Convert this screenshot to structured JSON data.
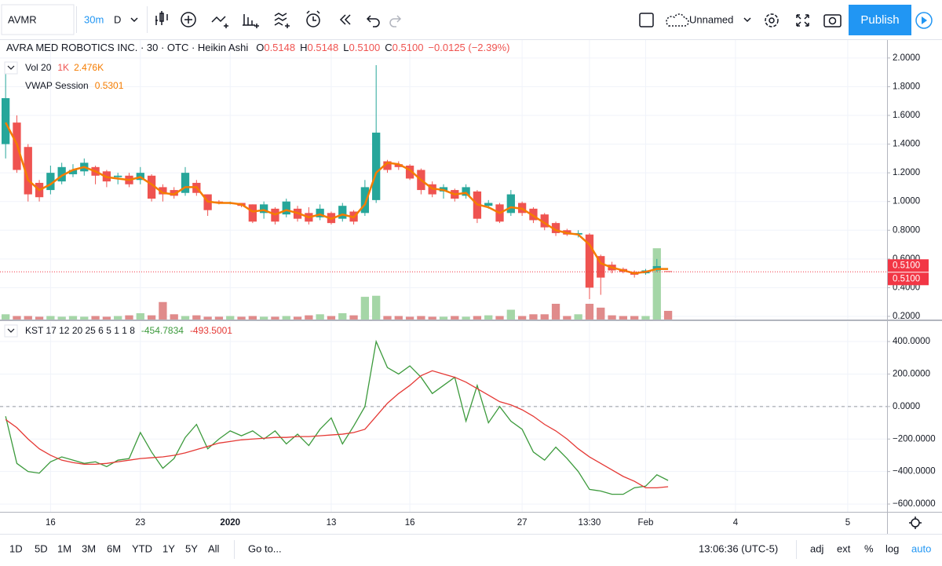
{
  "toolbar": {
    "symbol": "AVMR",
    "interval": "30m",
    "range": "D",
    "layout_name": "Unnamed",
    "publish": "Publish"
  },
  "bottom_bar": {
    "ranges": [
      "1D",
      "5D",
      "1M",
      "3M",
      "6M",
      "YTD",
      "1Y",
      "5Y",
      "All"
    ],
    "goto": "Go to...",
    "clock": "13:06:36 (UTC-5)",
    "options": [
      "adj",
      "ext",
      "%",
      "log",
      "auto"
    ]
  },
  "chart_data": [
    {
      "type": "candlestick",
      "title": "AVRA MED ROBOTICS INC. · 30 · OTC · Heikin Ashi",
      "ohlc_labels": [
        "O",
        "H",
        "L",
        "C"
      ],
      "ohlc_values": [
        "0.5148",
        "0.5148",
        "0.5100",
        "0.5100"
      ],
      "change": "−0.0125 (−2.39%)",
      "up_color": "#26a69a",
      "down_color": "#ef5350",
      "grid": true,
      "categories": [
        null,
        null,
        null,
        null,
        "16",
        null,
        null,
        null,
        null,
        null,
        null,
        null,
        "23",
        null,
        null,
        null,
        null,
        null,
        null,
        null,
        "2020",
        null,
        null,
        null,
        null,
        null,
        null,
        null,
        null,
        "13",
        null,
        null,
        null,
        null,
        null,
        null,
        "16",
        null,
        null,
        null,
        null,
        null,
        null,
        null,
        null,
        null,
        "27",
        null,
        null,
        null,
        null,
        null,
        "13:30",
        null,
        null,
        null,
        null,
        "Feb",
        null,
        null,
        null,
        null,
        null,
        null,
        null,
        "4",
        null,
        null,
        null,
        null,
        null,
        null,
        null,
        null,
        null,
        "5",
        null,
        null,
        null
      ],
      "ylim": [
        0.178,
        2.125
      ],
      "yticks": [
        {
          "value": 0.2,
          "label": "0.2000"
        },
        {
          "value": 0.4,
          "label": "0.4000"
        },
        {
          "value": 0.6,
          "label": "0.6000"
        },
        {
          "value": 0.8,
          "label": "0.8000"
        },
        {
          "value": 1.0,
          "label": "1.0000"
        },
        {
          "value": 1.2,
          "label": "1.2000"
        },
        {
          "value": 1.4,
          "label": "1.4000"
        },
        {
          "value": 1.6,
          "label": "1.6000"
        },
        {
          "value": 1.8,
          "label": "1.8000"
        },
        {
          "value": 2.0,
          "label": "2.0000"
        }
      ],
      "open": [
        1.4,
        1.55,
        1.38,
        1.13,
        1.08,
        1.14,
        1.19,
        1.21,
        1.24,
        1.21,
        1.17,
        1.18,
        1.15,
        1.18,
        1.1,
        1.08,
        1.06,
        1.13,
        1.05,
        1.0,
        0.99,
        0.99,
        0.98,
        0.92,
        0.95,
        0.91,
        0.95,
        0.92,
        0.89,
        0.92,
        0.88,
        0.93,
        0.92,
        1.01,
        1.28,
        1.26,
        1.25,
        1.22,
        1.12,
        1.07,
        1.08,
        1.04,
        1.07,
        0.97,
        0.98,
        0.92,
        0.99,
        0.95,
        0.91,
        0.85,
        0.8,
        0.77,
        0.77,
        0.62,
        0.56,
        0.53,
        0.51,
        0.5,
        0.52,
        0.5148,
        null,
        null,
        null,
        null,
        null,
        null,
        null,
        null,
        null,
        null,
        null,
        null,
        null,
        null,
        null,
        null,
        null,
        null,
        null
      ],
      "high": [
        1.95,
        1.6,
        1.4,
        1.15,
        1.25,
        1.27,
        1.26,
        1.3,
        1.25,
        1.22,
        1.2,
        1.2,
        1.24,
        1.19,
        1.12,
        1.1,
        1.24,
        1.15,
        1.05,
        1.01,
        1.0,
        0.99,
        0.98,
        1.0,
        0.96,
        1.02,
        0.97,
        0.96,
        0.98,
        0.93,
        0.99,
        0.94,
        1.15,
        1.95,
        1.29,
        1.28,
        1.26,
        1.23,
        1.14,
        1.12,
        1.09,
        1.12,
        1.08,
        1.01,
        0.99,
        1.08,
        1.0,
        0.96,
        0.92,
        0.86,
        0.81,
        0.8,
        0.78,
        0.63,
        0.58,
        0.54,
        0.52,
        0.53,
        0.6,
        0.5148,
        null,
        null,
        null,
        null,
        null,
        null,
        null,
        null,
        null,
        null,
        null,
        null,
        null,
        null,
        null,
        null,
        null,
        null,
        null
      ],
      "low": [
        1.3,
        1.2,
        1.0,
        1.0,
        1.05,
        1.12,
        1.17,
        1.18,
        1.12,
        1.1,
        1.12,
        1.1,
        1.12,
        1.0,
        1.0,
        1.02,
        1.04,
        1.04,
        0.9,
        0.98,
        0.98,
        0.96,
        0.85,
        0.88,
        0.84,
        0.89,
        0.86,
        0.84,
        0.87,
        0.84,
        0.86,
        0.84,
        0.9,
        0.99,
        1.2,
        1.22,
        1.15,
        1.05,
        1.03,
        1.02,
        1.0,
        1.02,
        0.85,
        0.95,
        0.85,
        0.9,
        0.9,
        0.85,
        0.8,
        0.76,
        0.76,
        0.75,
        0.32,
        0.35,
        0.5,
        0.5,
        0.47,
        0.49,
        0.51,
        0.51,
        null,
        null,
        null,
        null,
        null,
        null,
        null,
        null,
        null,
        null,
        null,
        null,
        null,
        null,
        null,
        null,
        null,
        null,
        null
      ],
      "close": [
        1.72,
        1.22,
        1.05,
        1.03,
        1.2,
        1.24,
        1.22,
        1.27,
        1.18,
        1.14,
        1.18,
        1.12,
        1.2,
        1.02,
        1.05,
        1.04,
        1.2,
        1.06,
        0.94,
        0.99,
        0.99,
        0.97,
        0.86,
        0.98,
        0.86,
        1.0,
        0.88,
        0.86,
        0.95,
        0.85,
        0.97,
        0.86,
        1.1,
        1.48,
        1.22,
        1.24,
        1.16,
        1.08,
        1.05,
        1.1,
        1.02,
        1.1,
        0.88,
        0.99,
        0.86,
        1.05,
        0.92,
        0.87,
        0.82,
        0.78,
        0.77,
        0.78,
        0.4,
        0.47,
        0.52,
        0.51,
        0.49,
        0.52,
        0.55,
        0.51,
        null,
        null,
        null,
        null,
        null,
        null,
        null,
        null,
        null,
        null,
        null,
        null,
        null,
        null,
        null,
        null,
        null,
        null,
        null
      ],
      "last_price": {
        "value": 0.51,
        "label": "0.5100"
      },
      "last_price_color": "#f23645",
      "vwap": {
        "name": "VWAP Session",
        "value_label": "0.5301",
        "color": "#f57c00",
        "values": [
          1.55,
          1.4,
          1.15,
          1.08,
          1.12,
          1.18,
          1.22,
          1.24,
          1.21,
          1.17,
          1.16,
          1.15,
          1.17,
          1.12,
          1.06,
          1.05,
          1.1,
          1.1,
          1.0,
          0.99,
          0.99,
          0.98,
          0.93,
          0.94,
          0.91,
          0.94,
          0.92,
          0.89,
          0.91,
          0.88,
          0.91,
          0.89,
          0.98,
          1.2,
          1.27,
          1.26,
          1.22,
          1.15,
          1.09,
          1.08,
          1.05,
          1.06,
          0.98,
          0.96,
          0.92,
          0.96,
          0.95,
          0.9,
          0.85,
          0.8,
          0.78,
          0.77,
          0.7,
          0.57,
          0.54,
          0.52,
          0.5,
          0.51,
          0.53,
          0.5301,
          null,
          null,
          null,
          null,
          null,
          null,
          null,
          null,
          null,
          null,
          null,
          null,
          null,
          null,
          null,
          null,
          null,
          null,
          null
        ]
      },
      "volume": {
        "name": "Vol 20",
        "param": "1K",
        "value_label": "2.476K",
        "up_color": "#a5d6a7",
        "down_color": "#e08b8b",
        "vlim": [
          0,
          80
        ],
        "values": [
          1.5,
          1,
          1,
          0.8,
          1,
          0.8,
          1,
          0.8,
          1,
          0.8,
          1,
          1.2,
          1.8,
          1.2,
          5,
          1.5,
          1,
          1.2,
          0.8,
          0.8,
          1,
          0.8,
          1,
          0.8,
          0.8,
          1,
          0.8,
          1.2,
          1.5,
          1,
          1.8,
          1.2,
          6.5,
          6.8,
          1,
          1,
          0.8,
          1,
          0.8,
          0.8,
          1,
          0.8,
          1,
          1.2,
          1,
          2.8,
          1,
          1.5,
          1.5,
          4.5,
          1,
          1.5,
          4.5,
          3.4,
          1.2,
          1,
          1,
          1,
          20.4,
          2.476,
          null,
          null,
          null,
          null,
          null,
          null,
          null,
          null,
          null,
          null,
          null,
          null,
          null,
          null,
          null,
          null,
          null,
          null,
          null
        ]
      }
    },
    {
      "type": "line",
      "title": "KST 17 12 20 25 6 5 1 1 8",
      "grid": true,
      "zero_line": true,
      "ylim": [
        -648,
        521
      ],
      "yticks": [
        {
          "value": 400,
          "label": "400.0000"
        },
        {
          "value": 200,
          "label": "200.0000"
        },
        {
          "value": 0,
          "label": "0.0000"
        },
        {
          "value": -200,
          "label": "−200.0000"
        },
        {
          "value": -400,
          "label": "−400.0000"
        },
        {
          "value": -600,
          "label": "−600.0000"
        }
      ],
      "series": [
        {
          "value_label": "-454.7834",
          "color": "#3c9a3c",
          "values": [
            -60,
            -350,
            -400,
            -410,
            -340,
            -310,
            -330,
            -350,
            -340,
            -370,
            -330,
            -320,
            -160,
            -280,
            -380,
            -320,
            -190,
            -110,
            -260,
            -200,
            -150,
            -180,
            -150,
            -200,
            -150,
            -230,
            -170,
            -240,
            -140,
            -70,
            -230,
            -120,
            0,
            400,
            240,
            200,
            250,
            180,
            80,
            130,
            180,
            -90,
            130,
            -100,
            0,
            -90,
            -140,
            -280,
            -330,
            -250,
            -320,
            -400,
            -510,
            -520,
            -540,
            -540,
            -500,
            -490,
            -420,
            -454.7834,
            null,
            null,
            null,
            null,
            null,
            null,
            null,
            null,
            null,
            null,
            null,
            null,
            null,
            null,
            null,
            null,
            null,
            null,
            null
          ]
        },
        {
          "value_label": "-493.5001",
          "color": "#e53935",
          "values": [
            -80,
            -130,
            -200,
            -260,
            -300,
            -330,
            -345,
            -355,
            -355,
            -350,
            -340,
            -330,
            -320,
            -315,
            -310,
            -300,
            -285,
            -265,
            -245,
            -225,
            -215,
            -205,
            -200,
            -195,
            -190,
            -190,
            -185,
            -185,
            -180,
            -175,
            -170,
            -160,
            -140,
            -60,
            20,
            80,
            130,
            190,
            220,
            200,
            180,
            150,
            110,
            70,
            30,
            10,
            -20,
            -60,
            -110,
            -150,
            -200,
            -260,
            -310,
            -350,
            -390,
            -430,
            -460,
            -500,
            -500,
            -493.5001,
            null,
            null,
            null,
            null,
            null,
            null,
            null,
            null,
            null,
            null,
            null,
            null,
            null,
            null,
            null,
            null,
            null,
            null,
            null
          ]
        }
      ]
    }
  ]
}
